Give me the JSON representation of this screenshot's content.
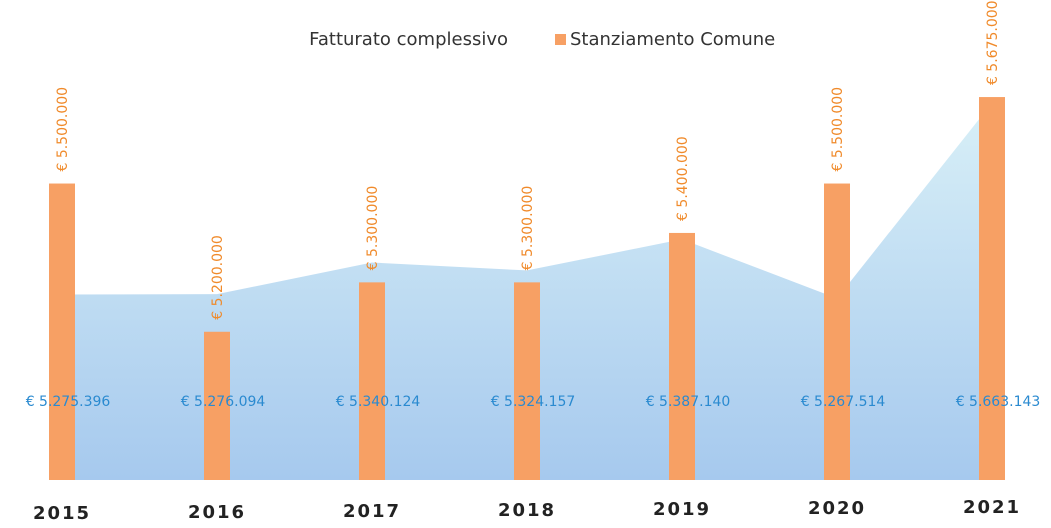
{
  "chart_data": {
    "type": "bar-area",
    "categories": [
      "2015",
      "2016",
      "2017",
      "2018",
      "2019",
      "2020",
      "2021"
    ],
    "series": [
      {
        "name": "Fatturato complessivo",
        "type": "area",
        "color": "#a9d8ea",
        "values": [
          5275396,
          5276094,
          5340124,
          5324157,
          5387140,
          5267514,
          5663143
        ],
        "value_labels": [
          "€ 5.275.396",
          "€ 5.276.094",
          "€ 5.340.124",
          "€ 5.324.157",
          "€ 5.387.140",
          "€ 5.267.514",
          "€ 5.663.143"
        ]
      },
      {
        "name": "Stanziamento Comune",
        "type": "bar",
        "color": "#f7a064",
        "values": [
          5500000,
          5200000,
          5300000,
          5300000,
          5400000,
          5500000,
          5675000
        ],
        "value_labels": [
          "€ 5.500.000",
          "€ 5.200.000",
          "€ 5.300.000",
          "€ 5.300.000",
          "€ 5.400.000",
          "€ 5.500.000",
          "€ 5.675.000"
        ]
      }
    ],
    "ylim": [
      4900000,
      5750000
    ]
  }
}
